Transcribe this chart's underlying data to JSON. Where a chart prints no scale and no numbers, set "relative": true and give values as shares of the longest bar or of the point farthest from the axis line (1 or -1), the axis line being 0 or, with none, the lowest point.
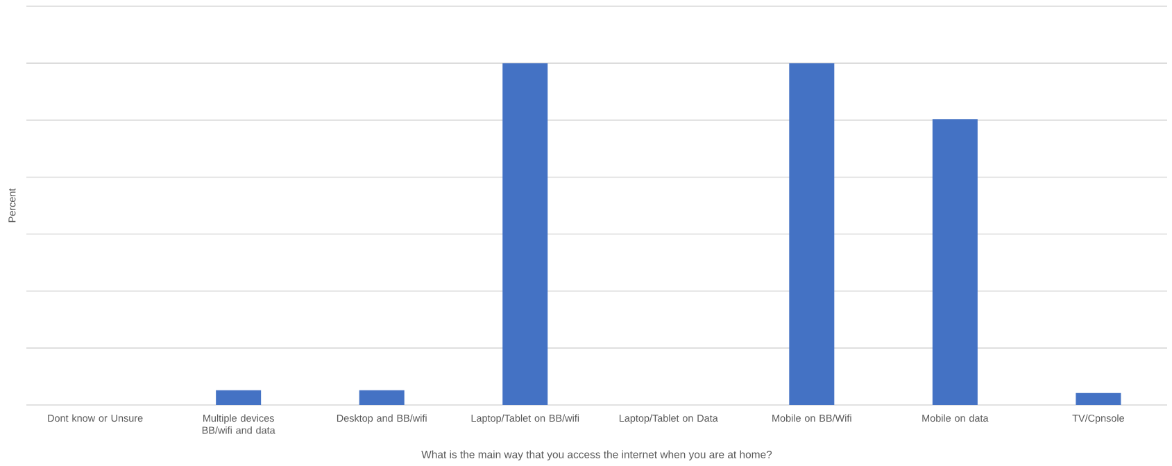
{
  "chart_data": {
    "type": "bar",
    "relative": true,
    "xlabel": "What is the main way that you access the internet when you are at home?",
    "ylabel": "Percent",
    "categories": [
      "Dont know or Unsure",
      "Multiple devices BB/wifi and data",
      "Desktop and BB/wifi",
      "Laptop/Tablet on BB/wifi",
      "Laptop/Tablet on Data",
      "Mobile on BB/Wifi",
      "Mobile on data",
      "TV/Cpnsole"
    ],
    "values": [
      0,
      0.043,
      0.043,
      1,
      0,
      1,
      0.836,
      0.035
    ],
    "color": "#4472c4",
    "grid": "y"
  }
}
